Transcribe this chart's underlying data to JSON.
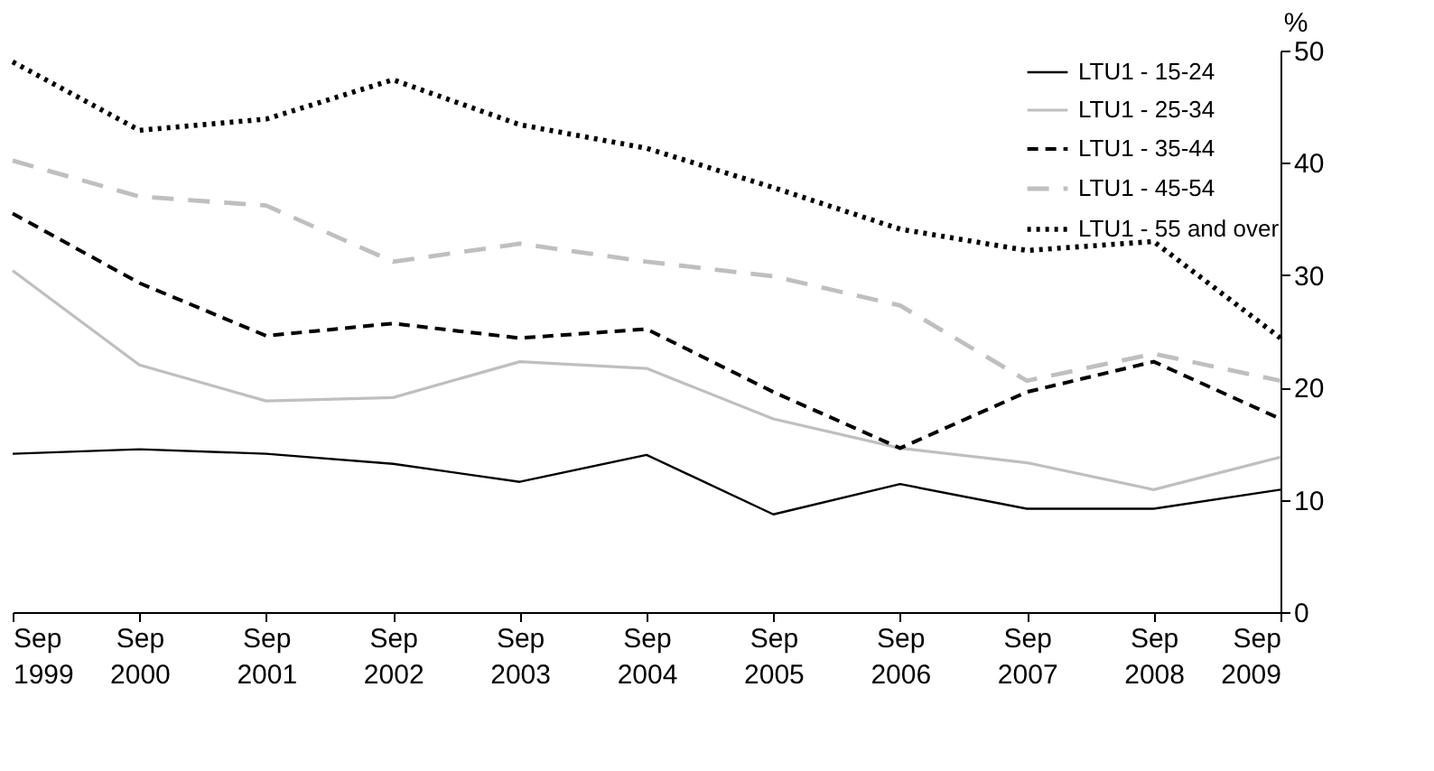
{
  "chart_data": {
    "type": "line",
    "categories": [
      "Sep 1999",
      "Sep 2000",
      "Sep 2001",
      "Sep 2002",
      "Sep 2003",
      "Sep 2004",
      "Sep 2005",
      "Sep 2006",
      "Sep 2007",
      "Sep 2008",
      "Sep 2009"
    ],
    "ylabel": "%",
    "ylim": [
      0,
      50
    ],
    "yticks": [
      0,
      10,
      20,
      30,
      40,
      50
    ],
    "grid": false,
    "legend": "top right",
    "series": [
      {
        "name": "LTU1 - 15-24",
        "color": "#000000",
        "line_style": "solid",
        "values": [
          14.1,
          14.5,
          14.1,
          13.2,
          11.6,
          14.0,
          8.7,
          11.4,
          9.2,
          9.2,
          10.9
        ]
      },
      {
        "name": "LTU1 - 25-34",
        "color": "#bfbfbf",
        "line_style": "solid",
        "values": [
          30.4,
          22.0,
          18.8,
          19.1,
          22.3,
          21.7,
          17.2,
          14.6,
          13.3,
          10.9,
          13.8
        ]
      },
      {
        "name": "LTU1 - 35-44",
        "color": "#000000",
        "line_style": "dashed",
        "values": [
          35.5,
          29.3,
          24.6,
          25.7,
          24.4,
          25.2,
          19.6,
          14.6,
          19.6,
          22.3,
          17.2
        ]
      },
      {
        "name": "LTU1 - 45-54",
        "color": "#bfbfbf",
        "line_style": "dashed",
        "values": [
          40.2,
          37.0,
          36.2,
          31.2,
          32.8,
          31.2,
          29.9,
          27.3,
          20.6,
          23.0,
          20.6
        ]
      },
      {
        "name": "LTU1 - 55 and over",
        "color": "#000000",
        "line_style": "dotted",
        "values": [
          49.0,
          42.9,
          43.9,
          47.4,
          43.4,
          41.3,
          37.8,
          34.1,
          32.2,
          33.0,
          24.4
        ]
      }
    ]
  }
}
